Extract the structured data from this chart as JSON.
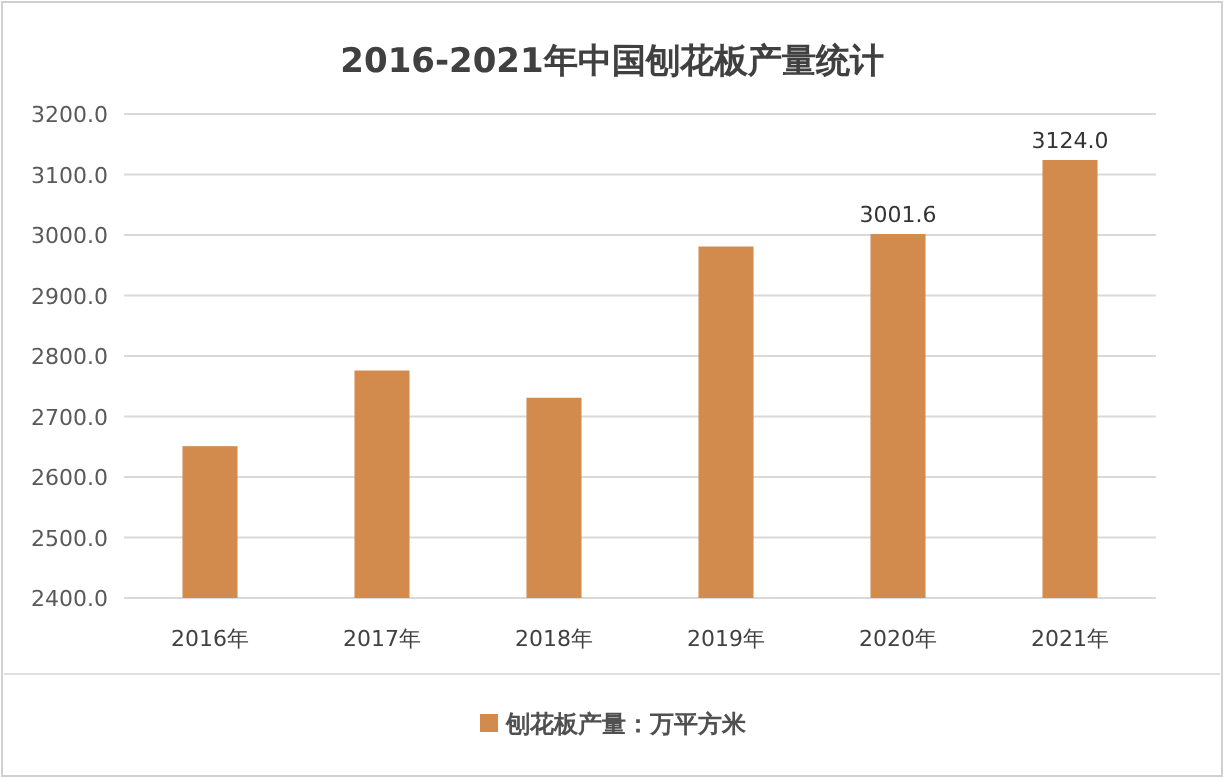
{
  "chart_data": {
    "type": "bar",
    "title": "2016-2021年中国刨花板产量统计",
    "categories": [
      "2016年",
      "2017年",
      "2018年",
      "2019年",
      "2020年",
      "2021年"
    ],
    "series": [
      {
        "name": "刨花板产量：万平方米",
        "color": "#d38b4d",
        "values": [
          2651,
          2776,
          2731,
          2981,
          3001.6,
          3124.0
        ],
        "value_labels": [
          null,
          null,
          null,
          null,
          "3001.6",
          "3124.0"
        ]
      }
    ],
    "ylim": [
      2400,
      3200
    ],
    "yticks": [
      {
        "value": 2400,
        "label": "2400.0"
      },
      {
        "value": 2500,
        "label": "2500.0"
      },
      {
        "value": 2600,
        "label": "2600.0"
      },
      {
        "value": 2700,
        "label": "2700.0"
      },
      {
        "value": 2800,
        "label": "2800.0"
      },
      {
        "value": 2900,
        "label": "2900.0"
      },
      {
        "value": 3000,
        "label": "3000.0"
      },
      {
        "value": 3100,
        "label": "3100.0"
      },
      {
        "value": 3200,
        "label": "3200.0"
      }
    ],
    "grid": "y",
    "legend": "bottom"
  }
}
